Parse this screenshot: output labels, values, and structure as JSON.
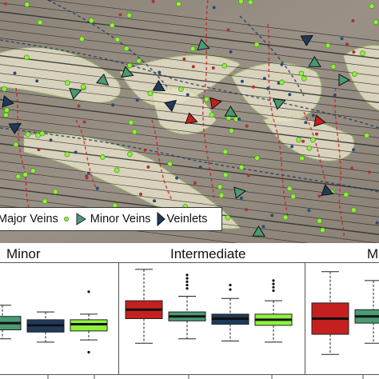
{
  "legend": {
    "major_label": "Major Veins",
    "minor_label": "Minor Veins",
    "veinlets_label": "Veinlets"
  },
  "panels": [
    {
      "title": "Minor"
    },
    {
      "title": "Intermediate"
    },
    {
      "title": "M"
    }
  ],
  "colors": {
    "major": "#c42020",
    "minor": "#4a9a72",
    "veinlets": "#1f3a5a",
    "highlight": "#8ef23a"
  },
  "chart_data": {
    "type": "box",
    "series_order": [
      "red",
      "green",
      "navy",
      "lime"
    ],
    "panels": [
      {
        "title": "Minor",
        "boxes": [
          {
            "color": "green",
            "q1": 0.3,
            "median": 0.33,
            "q3": 0.36,
            "whisker_low": 0.26,
            "whisker_high": 0.41,
            "outliers": []
          },
          {
            "color": "navy",
            "q1": 0.29,
            "median": 0.32,
            "q3": 0.345,
            "whisker_low": 0.245,
            "whisker_high": 0.38,
            "outliers": []
          },
          {
            "color": "lime",
            "q1": 0.295,
            "median": 0.325,
            "q3": 0.345,
            "whisker_low": 0.255,
            "whisker_high": 0.37,
            "outliers": [
              0.47,
              0.2
            ]
          }
        ]
      },
      {
        "title": "Intermediate",
        "boxes": [
          {
            "color": "red",
            "q1": 0.35,
            "median": 0.39,
            "q3": 0.43,
            "whisker_low": 0.24,
            "whisker_high": 0.57,
            "outliers": []
          },
          {
            "color": "green",
            "q1": 0.34,
            "median": 0.36,
            "q3": 0.38,
            "whisker_low": 0.26,
            "whisker_high": 0.45,
            "outliers": [
              0.485,
              0.5,
              0.515,
              0.53,
              0.545
            ]
          },
          {
            "color": "navy",
            "q1": 0.325,
            "median": 0.35,
            "q3": 0.37,
            "whisker_low": 0.25,
            "whisker_high": 0.44,
            "outliers": [
              0.48,
              0.5
            ]
          },
          {
            "color": "lime",
            "q1": 0.32,
            "median": 0.345,
            "q3": 0.37,
            "whisker_low": 0.245,
            "whisker_high": 0.43,
            "outliers": [
              0.475,
              0.49,
              0.505,
              0.52
            ]
          }
        ]
      },
      {
        "title": "M",
        "boxes": [
          {
            "color": "red",
            "q1": 0.28,
            "median": 0.35,
            "q3": 0.42,
            "whisker_low": 0.19,
            "whisker_high": 0.56,
            "outliers": []
          },
          {
            "color": "green",
            "q1": 0.33,
            "median": 0.36,
            "q3": 0.39,
            "whisker_low": 0.24,
            "whisker_high": 0.52,
            "outliers": []
          }
        ]
      }
    ],
    "ylim": [
      0.1,
      0.6
    ]
  }
}
